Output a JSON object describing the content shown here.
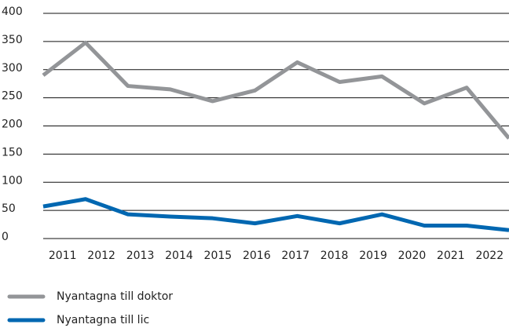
{
  "chart_data": {
    "type": "line",
    "categories": [
      "2011",
      "2012",
      "2013",
      "2014",
      "2015",
      "2016",
      "2017",
      "2018",
      "2019",
      "2020",
      "2021",
      "2022"
    ],
    "series": [
      {
        "name": "Nyantagna till doktor",
        "color": "#939598",
        "values": [
          290,
          348,
          271,
          265,
          244,
          263,
          313,
          278,
          288,
          240,
          268,
          178
        ]
      },
      {
        "name": "Nyantagna till lic",
        "color": "#0067b1",
        "values": [
          57,
          70,
          43,
          39,
          36,
          27,
          40,
          27,
          43,
          23,
          23,
          15
        ]
      }
    ],
    "ylim": [
      0,
      400
    ],
    "yticks": [
      0,
      50,
      100,
      150,
      200,
      250,
      300,
      350,
      400
    ],
    "grid": true,
    "legend": "bottom"
  }
}
